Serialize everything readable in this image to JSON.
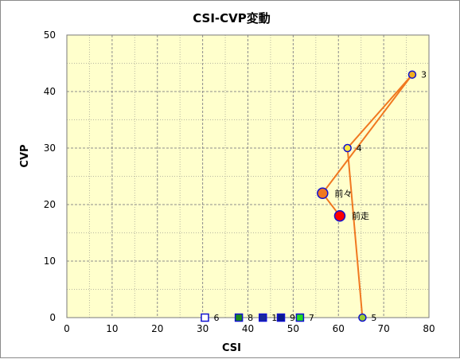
{
  "chart_data": {
    "type": "scatter",
    "title": "CSI-CVP変動",
    "xlabel": "CSI",
    "ylabel": "CVP",
    "xlim": [
      0,
      80
    ],
    "ylim": [
      0,
      50
    ],
    "xticks": [
      0,
      10,
      20,
      30,
      40,
      50,
      60,
      70,
      80
    ],
    "yticks": [
      0,
      10,
      20,
      30,
      40,
      50
    ],
    "grid": true,
    "legend": "none",
    "plot_bg": "#ffffcc",
    "grid_color": "#8c8c8c",
    "line_color": "#f07820",
    "path_order": [
      "前走",
      "前々",
      "3",
      "4",
      "5"
    ],
    "points": [
      {
        "label": "前走",
        "x": 60.3,
        "y": 18.0,
        "shape": "circle",
        "fill": "#ff0000",
        "stroke": "#1010d0",
        "size": "large"
      },
      {
        "label": "前々",
        "x": 56.5,
        "y": 22.0,
        "shape": "circle",
        "fill": "#f07820",
        "stroke": "#1010d0",
        "size": "large"
      },
      {
        "label": "3",
        "x": 76.3,
        "y": 43.0,
        "shape": "circle",
        "fill": "#f0b020",
        "stroke": "#1010d0",
        "size": "small"
      },
      {
        "label": "4",
        "x": 62.0,
        "y": 30.0,
        "shape": "circle",
        "fill": "#ffe840",
        "stroke": "#1010d0",
        "size": "small"
      },
      {
        "label": "5",
        "x": 65.3,
        "y": 0.0,
        "shape": "circle",
        "fill": "#9acd32",
        "stroke": "#1010d0",
        "size": "small"
      },
      {
        "label": "6",
        "x": 30.5,
        "y": 0.0,
        "shape": "square",
        "fill": "#ffffff",
        "stroke": "#1010d0",
        "size": "small"
      },
      {
        "label": "7",
        "x": 51.5,
        "y": 0.0,
        "shape": "square",
        "fill": "#22dd22",
        "stroke": "#1010d0",
        "size": "small"
      },
      {
        "label": "8",
        "x": 38.0,
        "y": 0.0,
        "shape": "square",
        "fill": "#1a8a1a",
        "stroke": "#1010d0",
        "size": "small"
      },
      {
        "label": "9",
        "x": 47.3,
        "y": 0.0,
        "shape": "square",
        "fill": "#0a1a8a",
        "stroke": "#1010d0",
        "size": "small"
      },
      {
        "label": "1",
        "x": 43.3,
        "y": 0.0,
        "shape": "square",
        "fill": "#1a2a9a",
        "stroke": "#1010d0",
        "size": "small"
      }
    ]
  }
}
